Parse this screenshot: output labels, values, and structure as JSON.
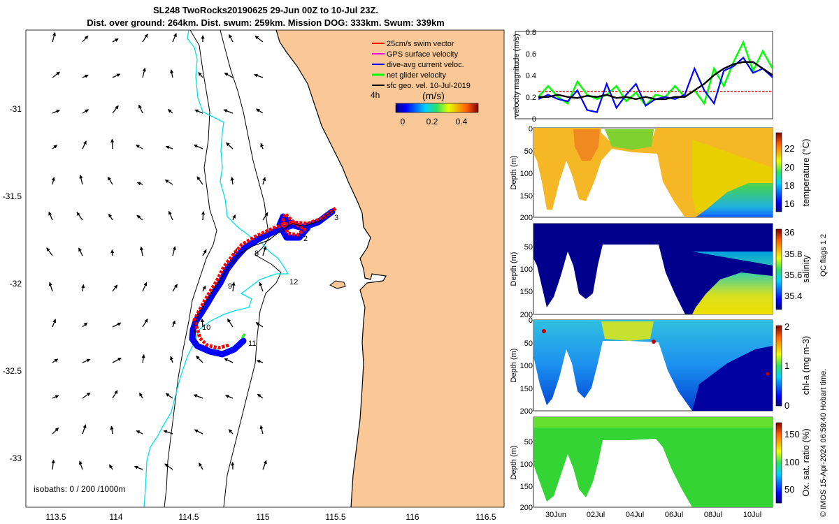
{
  "title": {
    "line1": "SL248 TwoRocks20190625 29-Jun 00Z to 10-Jul 23Z.",
    "line2": "Dist. over ground: 264km. Dist. swum: 259km. Mission DOG: 333km. Swum: 339km"
  },
  "colors": {
    "ocean": "#ffffff",
    "land": "#f9c896",
    "coast": "#000000",
    "isobath_shallow": "#00e0e8",
    "isobath_deep": "#000000",
    "swim": "#ff0000",
    "gps": "#ff00ff",
    "dive": "#0000ff",
    "net": "#00ff00",
    "sfcgeo": "#000000"
  },
  "map": {
    "x_ticks": [
      "113.5",
      "114",
      "114.5",
      "115",
      "115.5",
      "116",
      "116.5"
    ],
    "y_ticks": [
      "-31",
      "-31.5",
      "-32",
      "-32.5",
      "-33"
    ],
    "legend": [
      {
        "label": "25cm/s swim vector",
        "color": "#ff0000"
      },
      {
        "label": "GPS surface velocity",
        "color": "#ff00ff"
      },
      {
        "label": "dive-avg current veloc.",
        "color": "#0000ff"
      },
      {
        "label": "net glider velocity",
        "color": "#00ff00"
      },
      {
        "label": "sfc geo. vel. 10-Jul-2019",
        "color": "#000000"
      }
    ],
    "colorbar_unit": "(m/s)",
    "colorbar_ticks": [
      "0",
      "0.2",
      "0.4"
    ],
    "hour_label": "4h",
    "isobath_label": "isobaths: 0 / 200 /1000m",
    "day_labels": [
      "2",
      "3",
      "8",
      "9",
      "10",
      "11",
      "12"
    ]
  },
  "chart_data": [
    {
      "type": "line",
      "title": "",
      "ylabel": "velocity magnitude (m/s)",
      "ylim": [
        0,
        0.8
      ],
      "yticks": [
        "0",
        "0.2",
        "0.4",
        "0.6",
        "0.8"
      ],
      "xlim_days": [
        0,
        12
      ],
      "x": [
        0,
        0.5,
        1,
        1.5,
        2,
        2.5,
        3,
        3.5,
        4,
        4.5,
        5,
        5.5,
        6,
        6.5,
        7,
        7.5,
        8,
        8.5,
        9,
        9.5,
        10,
        10.5,
        11,
        11.5,
        12
      ],
      "series": [
        {
          "name": "25cm/s swim vector",
          "color": "#ff0000",
          "values": [
            0.25,
            0.25,
            0.25,
            0.25,
            0.25,
            0.25,
            0.25,
            0.25,
            0.25,
            0.25,
            0.25,
            0.25,
            0.25,
            0.25,
            0.25,
            0.25,
            0.25,
            0.25,
            0.25,
            0.25,
            0.25,
            0.25,
            0.25,
            0.25,
            0.25
          ]
        },
        {
          "name": "net glider velocity",
          "color": "#00ff00",
          "values": [
            0.2,
            0.3,
            0.2,
            0.14,
            0.34,
            0.22,
            0.18,
            0.22,
            0.3,
            0.16,
            0.24,
            0.12,
            0.22,
            0.2,
            0.3,
            0.2,
            0.26,
            0.14,
            0.46,
            0.3,
            0.52,
            0.7,
            0.44,
            0.62,
            0.46
          ]
        },
        {
          "name": "dive-avg current veloc.",
          "color": "#0000ff",
          "values": [
            0.18,
            0.22,
            0.18,
            0.16,
            0.26,
            0.08,
            0.06,
            0.32,
            0.1,
            0.22,
            0.32,
            0.12,
            0.18,
            0.2,
            0.18,
            0.22,
            0.46,
            0.26,
            0.14,
            0.44,
            0.48,
            0.56,
            0.42,
            0.46,
            0.38
          ]
        },
        {
          "name": "sfc geo. vel. 10-Jul-2019",
          "color": "#000000",
          "values": [
            0.2,
            0.2,
            0.22,
            0.2,
            0.19,
            0.21,
            0.2,
            0.22,
            0.19,
            0.2,
            0.18,
            0.2,
            0.18,
            0.18,
            0.2,
            0.2,
            0.26,
            0.32,
            0.4,
            0.46,
            0.5,
            0.52,
            0.52,
            0.46,
            0.4
          ]
        }
      ]
    },
    {
      "type": "heatmap",
      "ylabel": "Depth (m)",
      "yticks": [
        "0",
        "50",
        "100",
        "150",
        "200"
      ],
      "ylim": [
        200,
        0
      ],
      "colorbar_label": "temperature (°C)",
      "colorbar_ticks": [
        "16",
        "18",
        "20",
        "22"
      ],
      "colorbar_range": [
        15,
        23.5
      ]
    },
    {
      "type": "heatmap",
      "ylabel": "Depth (m)",
      "yticks": [
        "50",
        "100",
        "150",
        "200"
      ],
      "ylim": [
        200,
        0
      ],
      "colorbar_label": "salinity",
      "colorbar_ticks": [
        "35.4",
        "35.6",
        "35.8",
        "36"
      ],
      "colorbar_range": [
        35.3,
        36.05
      ]
    },
    {
      "type": "heatmap",
      "ylabel": "Depth (m)",
      "yticks": [
        "0",
        "50",
        "100",
        "150",
        "200"
      ],
      "ylim": [
        200,
        0
      ],
      "colorbar_label": "chl-a (mg m-3)",
      "colorbar_ticks": [
        "0",
        "1",
        "2"
      ],
      "colorbar_range": [
        0,
        2
      ]
    },
    {
      "type": "heatmap",
      "ylabel": "Depth (m)",
      "yticks": [
        "50",
        "100",
        "150",
        "200"
      ],
      "ylim": [
        200,
        0
      ],
      "colorbar_label": "Ox. sat. ratio (%)",
      "colorbar_ticks": [
        "50",
        "100",
        "150"
      ],
      "colorbar_range": [
        30,
        175
      ],
      "x_ticks": [
        "30Jun",
        "02Jul",
        "04Jul",
        "06Jul",
        "08Jul",
        "10Jul"
      ]
    }
  ],
  "sidebar": {
    "qc_label": "QC flags 1  2",
    "credit": "© IMOS 15-Apr-2024 06:59:40 Hobart time."
  }
}
